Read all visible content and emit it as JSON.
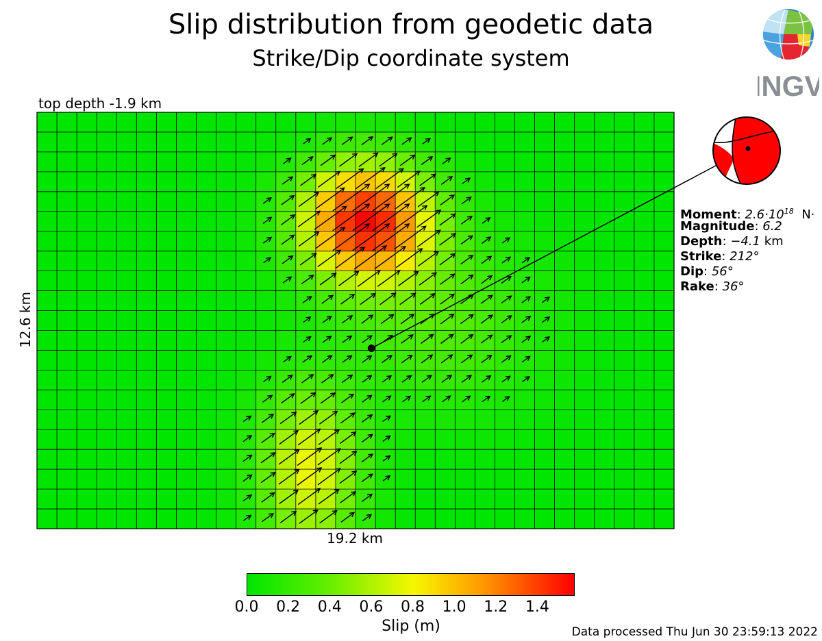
{
  "header": {
    "title": "Slip distribution from geodetic data",
    "subtitle": "Strike/Dip coordinate system"
  },
  "chart_data": {
    "type": "heatmap",
    "title": "Slip distribution from geodetic data",
    "subtitle": "Strike/Dip coordinate system",
    "top_depth_label": "top depth -1.9 km",
    "xlabel": "19.2 km",
    "ylabel": "12.6 km",
    "grid": {
      "columns": 32,
      "rows": 21
    },
    "along_strike_km": 19.2,
    "down_dip_km": 12.6,
    "slip_unit": "m",
    "max_slip": 1.58,
    "peak_patch": {
      "column": 16,
      "row": 5
    },
    "hypocenter_patch": {
      "column": 16.3,
      "row": 11.4
    },
    "rake_deg": 36,
    "colorbar": {
      "label": "Slip (m)",
      "ticks": [
        "0.0",
        "0.2",
        "0.4",
        "0.6",
        "0.8",
        "1.0",
        "1.2",
        "1.4"
      ],
      "range": [
        0,
        1.58
      ],
      "colors": [
        "#00e600",
        "#66ee00",
        "#f7f700",
        "#ff9900",
        "#ff0000"
      ]
    }
  },
  "source_info": {
    "moment_label": "Moment",
    "moment_value": "2.6·10",
    "moment_exponent": "18",
    "moment_unit": "N·",
    "magnitude_label": "Magnitude",
    "magnitude_value": "6.2",
    "depth_label": "Depth",
    "depth_value": "−4.1",
    "depth_unit": "km",
    "strike_label": "Strike",
    "strike_value": "212°",
    "dip_label": "Dip",
    "dip_value": "56°",
    "rake_label": "Rake",
    "rake_value": "36°"
  },
  "footer": {
    "processed": "Data processed Thu Jun 30 23:59:13 2022"
  },
  "logo": {
    "text": "INGV",
    "colors": {
      "text": "#8a8f96",
      "blue": "#2a86c7",
      "green": "#7cc242",
      "red": "#e3262f",
      "yellow": "#f6d52e"
    }
  }
}
